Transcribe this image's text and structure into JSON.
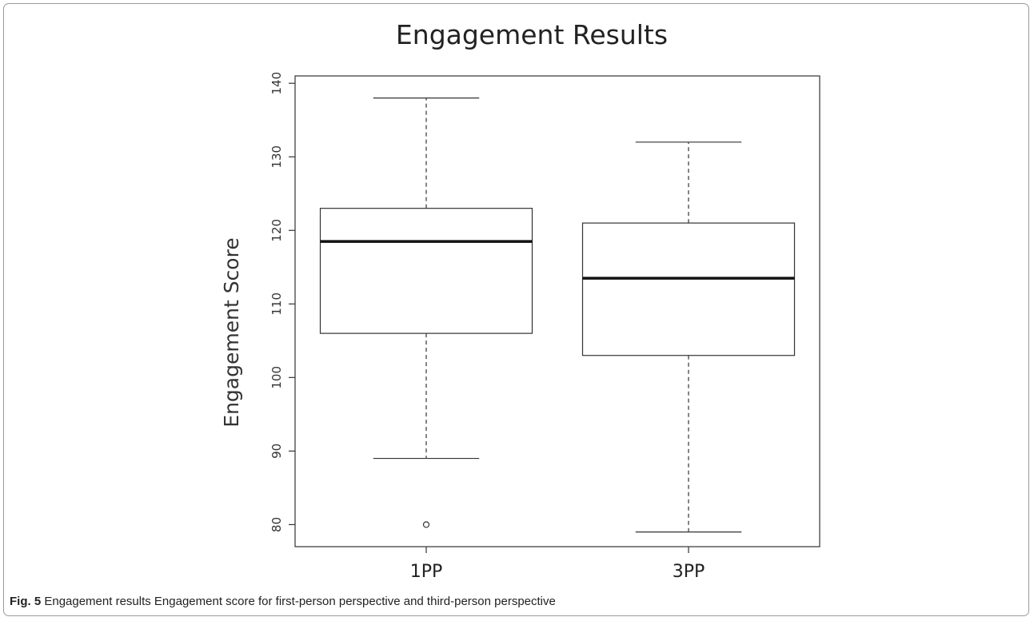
{
  "caption": {
    "label": "Fig. 5",
    "text": "Engagement results Engagement score for first-person perspective and third-person perspective"
  },
  "chart_data": {
    "type": "boxplot",
    "title": "Engagement Results",
    "xlabel": "",
    "ylabel": "Engagement Score",
    "ylim": [
      77,
      141
    ],
    "yticks": [
      80,
      90,
      100,
      110,
      120,
      130,
      140
    ],
    "grid": false,
    "categories": [
      "1PP",
      "3PP"
    ],
    "boxes": [
      {
        "category": "1PP",
        "whisker_low": 89,
        "q1": 106,
        "median": 118.5,
        "q3": 123,
        "whisker_high": 138,
        "outliers": [
          80
        ]
      },
      {
        "category": "3PP",
        "whisker_low": 79,
        "q1": 103,
        "median": 113.5,
        "q3": 121,
        "whisker_high": 132,
        "outliers": []
      }
    ],
    "colors": {
      "stroke": "#333333",
      "median": "#111111"
    }
  }
}
